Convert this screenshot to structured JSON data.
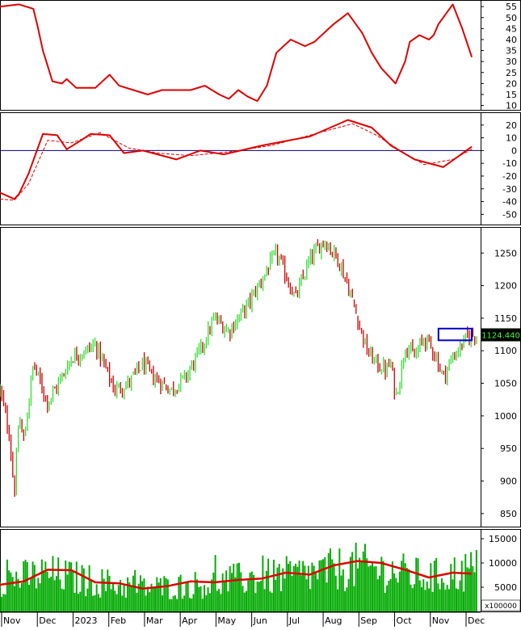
{
  "chart_data": {
    "type": "stock-chart-panels",
    "x_months": [
      "Nov",
      "Dec",
      "2023",
      "Feb",
      "Mar",
      "Apr",
      "May",
      "Jun",
      "Jul",
      "Aug",
      "Sep",
      "Oct",
      "Nov",
      "Dec"
    ],
    "panels": [
      {
        "id": "oscillator-top",
        "ylim": [
          8,
          58
        ],
        "y_ticks": [
          10,
          15,
          20,
          25,
          30,
          35,
          40,
          45,
          50,
          55
        ],
        "series": [
          {
            "color": "#dd0000",
            "style": "solid",
            "x": [
              0,
              4,
              7,
              8,
              9,
              10,
              11,
              13,
              14,
              16,
              20,
              23,
              25,
              28,
              31,
              34,
              36,
              40,
              43,
              46,
              48,
              49,
              50,
              52,
              54,
              56,
              58,
              61,
              64,
              66,
              70,
              73,
              76,
              78,
              80,
              83,
              85,
              86,
              88,
              90,
              91,
              92,
              95,
              97,
              99
            ],
            "y": [
              55,
              56,
              54,
              45,
              35,
              28,
              21,
              20,
              22,
              18,
              18,
              24,
              19,
              17,
              15,
              17,
              17,
              17,
              19,
              15,
              13,
              15,
              17,
              14,
              12,
              19,
              34,
              40,
              37,
              39,
              47,
              52,
              43,
              34,
              27,
              20,
              30,
              39,
              42,
              40,
              42,
              47,
              56,
              45,
              32
            ]
          }
        ]
      },
      {
        "id": "oscillator-mid",
        "ylim": [
          -58,
          30
        ],
        "y_ticks": [
          20,
          10,
          0,
          -10,
          -20,
          -30,
          -40,
          -50
        ],
        "zero_line": 0,
        "series": [
          {
            "color": "#dd0000",
            "style": "solid",
            "x": [
              0,
              3,
              4,
              6,
              9,
              12,
              14,
              17,
              19,
              23,
              26,
              30,
              37,
              42,
              47,
              55,
              65,
              73,
              78,
              82,
              87,
              93,
              99
            ],
            "y": [
              -33,
              -38,
              -34,
              -18,
              13,
              12,
              1,
              8,
              13,
              12,
              -2,
              0,
              -7,
              0,
              -3,
              4,
              11,
              24,
              18,
              4,
              -7,
              -13,
              3
            ]
          },
          {
            "color": "#dd0000",
            "style": "dashed",
            "x": [
              0,
              3,
              6,
              10,
              15,
              21,
              27,
              33,
              40,
              48,
              57,
              66,
              74,
              79,
              84,
              89,
              95,
              99
            ],
            "y": [
              -38,
              -39,
              -26,
              8,
              6,
              14,
              2,
              -2,
              -4,
              -1,
              4,
              13,
              21,
              12,
              0,
              -11,
              -7,
              1
            ]
          }
        ]
      },
      {
        "id": "price",
        "ylim": [
          830,
          1290
        ],
        "y_ticks": [
          1250,
          1200,
          1150,
          1100,
          1050,
          1000,
          950,
          900,
          850
        ],
        "last_value": "1124.440",
        "up_color": "#33dd33",
        "down_color": "#cc0000",
        "highlight_box": {
          "x": [
            92,
            99
          ],
          "y": [
            1116,
            1134
          ],
          "color": "#0000cc"
        },
        "path": {
          "x": [
            0,
            2,
            3,
            4,
            5,
            7,
            8,
            10,
            13,
            15,
            18,
            20,
            22,
            24,
            27,
            30,
            32,
            36,
            39,
            42,
            45,
            48,
            52,
            55,
            58,
            62,
            65,
            68,
            71,
            73,
            75,
            77,
            79,
            81,
            82,
            83,
            84,
            85,
            87,
            89,
            91,
            93,
            95,
            97,
            98,
            99
          ],
          "y": [
            1040,
            970,
            880,
            1000,
            960,
            1080,
            1060,
            1020,
            1060,
            1090,
            1100,
            1110,
            1075,
            1040,
            1050,
            1080,
            1060,
            1040,
            1060,
            1100,
            1150,
            1130,
            1170,
            1210,
            1250,
            1180,
            1240,
            1270,
            1240,
            1200,
            1150,
            1100,
            1080,
            1070,
            1080,
            1030,
            1060,
            1110,
            1090,
            1120,
            1100,
            1060,
            1090,
            1110,
            1120,
            1124.44
          ]
        }
      },
      {
        "id": "volume",
        "ylim": [
          0,
          17000
        ],
        "y_ticks": [
          15000,
          10000,
          5000
        ],
        "multiplier_label": "x100000",
        "bar_color": "#00aa00",
        "ma_color": "#dd0000",
        "volume_envelope": {
          "x": [
            0,
            5,
            10,
            15,
            20,
            25,
            30,
            35,
            40,
            45,
            50,
            55,
            60,
            65,
            70,
            75,
            80,
            85,
            90,
            95,
            99
          ],
          "y": [
            8500,
            9000,
            10000,
            9000,
            8000,
            7000,
            6500,
            6500,
            7000,
            7500,
            8500,
            9000,
            9500,
            10000,
            11000,
            12000,
            11000,
            10000,
            9000,
            10000,
            11000
          ]
        },
        "ma": {
          "x": [
            0,
            5,
            10,
            15,
            20,
            25,
            30,
            35,
            40,
            45,
            50,
            55,
            60,
            65,
            70,
            75,
            80,
            85,
            90,
            95,
            99
          ],
          "y": [
            5500,
            6200,
            8600,
            8500,
            6000,
            5800,
            4700,
            5200,
            6200,
            6000,
            6500,
            6800,
            8000,
            7600,
            9500,
            10400,
            10000,
            8600,
            7000,
            8000,
            7800
          ]
        }
      }
    ]
  }
}
